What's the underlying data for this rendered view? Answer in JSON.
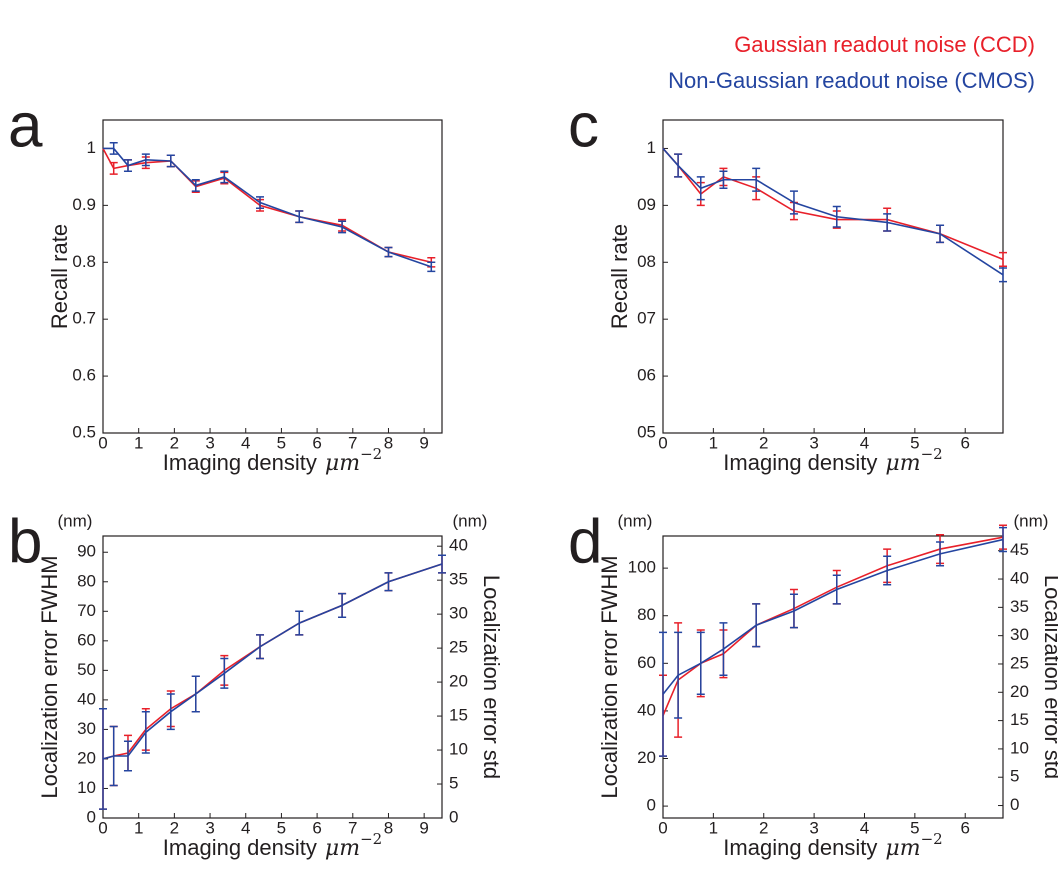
{
  "chart_data": [
    {
      "type": "line",
      "panel_label": "a",
      "xlabel": "Imaging density",
      "xlabel_unit": "μm",
      "xlabel_unit_power": "−2",
      "ylabel": "Recall rate",
      "x": [
        0,
        0.3,
        0.7,
        1.2,
        1.9,
        2.6,
        3.4,
        4.4,
        5.5,
        6.7,
        8.0,
        9.2
      ],
      "xlim": [
        0,
        9.5
      ],
      "xticks": [
        0,
        1,
        2,
        3,
        4,
        5,
        6,
        7,
        8,
        9
      ],
      "ylim": [
        0.5,
        1.05
      ],
      "yticks": [
        0.5,
        0.6,
        0.7,
        0.8,
        0.9,
        1
      ],
      "series": [
        {
          "name": "Gaussian readout noise (CCD)",
          "color": "#e8202a",
          "values": [
            1.0,
            0.965,
            0.97,
            0.975,
            0.978,
            0.933,
            0.948,
            0.9,
            0.88,
            0.865,
            0.818,
            0.8
          ],
          "errors": [
            0,
            0.01,
            0.01,
            0.01,
            0.01,
            0.01,
            0.01,
            0.01,
            0.01,
            0.01,
            0.008,
            0.008
          ]
        },
        {
          "name": "Non-Gaussian readout noise (CMOS)",
          "color": "#2445a0",
          "values": [
            1.0,
            1.0,
            0.97,
            0.98,
            0.978,
            0.935,
            0.95,
            0.905,
            0.88,
            0.862,
            0.818,
            0.792
          ],
          "errors": [
            0,
            0.01,
            0.01,
            0.01,
            0.01,
            0.01,
            0.01,
            0.01,
            0.01,
            0.01,
            0.008,
            0.008
          ]
        }
      ]
    },
    {
      "type": "line",
      "panel_label": "b",
      "xlabel": "Imaging density",
      "xlabel_unit": "μm",
      "xlabel_unit_power": "−2",
      "ylabel": "Localization error FWHM",
      "y2label": "Localization error std",
      "yunit": "(nm)",
      "y2unit": "(nm)",
      "x": [
        0,
        0.3,
        0.7,
        1.2,
        1.9,
        2.6,
        3.4,
        4.4,
        5.5,
        6.7,
        8.0,
        9.5
      ],
      "xlim": [
        0,
        9.5
      ],
      "xticks": [
        0,
        1,
        2,
        3,
        4,
        5,
        6,
        7,
        8,
        9
      ],
      "ylim": [
        0,
        95.5
      ],
      "yticks": [
        0,
        10,
        20,
        30,
        40,
        50,
        60,
        70,
        80,
        90
      ],
      "y2lim": [
        0,
        41.5
      ],
      "y2ticks": [
        0,
        5,
        10,
        15,
        20,
        25,
        30,
        35,
        40
      ],
      "series": [
        {
          "color": "#e8202a",
          "values": [
            20,
            21,
            22,
            30,
            37,
            42,
            50,
            58,
            66,
            72,
            80,
            86
          ],
          "errors": [
            17,
            10,
            6,
            7,
            6,
            6,
            5,
            4,
            4,
            4,
            3,
            3
          ]
        },
        {
          "color": "#2445a0",
          "values": [
            20,
            21,
            21,
            29,
            36,
            42,
            49,
            58,
            66,
            72,
            80,
            86
          ],
          "errors": [
            17,
            10,
            5,
            7,
            6,
            6,
            5,
            4,
            4,
            4,
            3,
            3
          ]
        }
      ]
    },
    {
      "type": "line",
      "panel_label": "c",
      "xlabel": "Imaging density",
      "xlabel_unit": "μm",
      "xlabel_unit_power": "−2",
      "ylabel": "Recall rate",
      "x": [
        0,
        0.3,
        0.75,
        1.2,
        1.85,
        2.6,
        3.45,
        4.45,
        5.5,
        6.75
      ],
      "xlim": [
        0,
        6.75
      ],
      "xticks": [
        0,
        1,
        2,
        3,
        4,
        5,
        6
      ],
      "ylim": [
        0.5,
        1.05
      ],
      "yticks": [
        {
          "value": 0.5,
          "label": "05"
        },
        {
          "value": 0.6,
          "label": "06"
        },
        {
          "value": 0.7,
          "label": "07"
        },
        {
          "value": 0.8,
          "label": "08"
        },
        {
          "value": 0.9,
          "label": "09"
        },
        1
      ],
      "series": [
        {
          "color": "#e8202a",
          "values": [
            1.0,
            0.97,
            0.92,
            0.95,
            0.93,
            0.89,
            0.875,
            0.875,
            0.85,
            0.805
          ],
          "errors": [
            0,
            0.02,
            0.02,
            0.015,
            0.02,
            0.015,
            0.015,
            0.02,
            0.015,
            0.012
          ]
        },
        {
          "color": "#2445a0",
          "values": [
            1.0,
            0.97,
            0.93,
            0.945,
            0.945,
            0.905,
            0.88,
            0.87,
            0.85,
            0.778
          ],
          "errors": [
            0,
            0.02,
            0.02,
            0.015,
            0.02,
            0.02,
            0.018,
            0.015,
            0.015,
            0.012
          ]
        }
      ]
    },
    {
      "type": "line",
      "panel_label": "d",
      "xlabel": "Imaging density",
      "xlabel_unit": "μm",
      "xlabel_unit_power": "−2",
      "ylabel": "Localization error FWHM",
      "y2label": "Localization error std",
      "yunit": "(nm)",
      "y2unit": "(nm)",
      "x": [
        0,
        0.3,
        0.75,
        1.2,
        1.85,
        2.6,
        3.45,
        4.45,
        5.5,
        6.75
      ],
      "xlim": [
        0,
        6.75
      ],
      "xticks": [
        0,
        1,
        2,
        3,
        4,
        5,
        6
      ],
      "ylim": [
        -5,
        113.5
      ],
      "yticks": [
        0,
        20,
        40,
        60,
        80,
        100
      ],
      "y2lim": [
        -2.2,
        47.6
      ],
      "y2ticks": [
        0,
        5,
        10,
        15,
        20,
        25,
        30,
        35,
        40,
        45
      ],
      "series": [
        {
          "color": "#e8202a",
          "values": [
            38,
            53,
            60,
            64,
            76,
            83,
            92,
            101,
            108,
            113
          ],
          "errors": [
            17,
            24,
            14,
            10,
            9,
            8,
            7,
            7,
            6,
            5
          ]
        },
        {
          "color": "#2445a0",
          "values": [
            47,
            55,
            60,
            66,
            76,
            82,
            91,
            99,
            106,
            112
          ],
          "errors": [
            26,
            18,
            13,
            11,
            9,
            7,
            6,
            6,
            5,
            5
          ]
        }
      ]
    }
  ]
}
